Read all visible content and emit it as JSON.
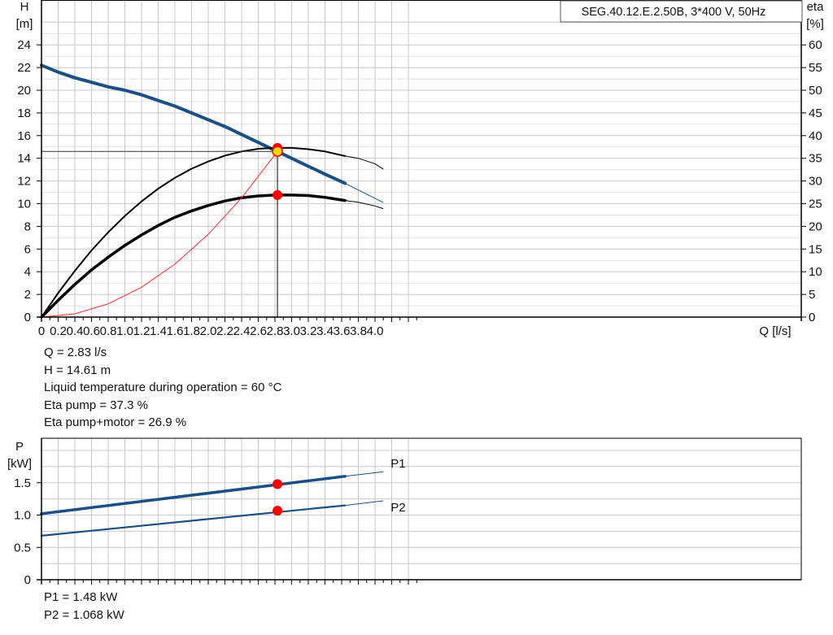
{
  "pump_label": "SEG.40.12.E.2.50B, 3*400 V, 50Hz",
  "head_chart": {
    "y_label_line1": "H",
    "y_label_line2": "[m]",
    "y2_label_line1": "eta",
    "y2_label_line2": "[%]",
    "x_label": "Q [l/s]"
  },
  "power_chart": {
    "y_label_line1": "P",
    "y_label_line2": "[kW]"
  },
  "operating_point_info": [
    "Q = 2.83 l/s",
    "H = 14.61 m",
    "Liquid temperature during operation = 60 °C",
    "Eta pump = 37.3 %",
    "Eta pump+motor = 26.9 %"
  ],
  "power_info": [
    "P1 = 1.48 kW",
    "P2 = 1.068 kW"
  ],
  "colors": {
    "pump_curve": "#1b4f85",
    "eta_curve": "#000000",
    "system_curve": "#ff2a2a",
    "marker": "#ff0000",
    "marker_center": "#ffd700",
    "grid": "#c8c8c8"
  },
  "chart_data": [
    {
      "type": "line",
      "title": "",
      "xlabel": "Q [l/s]",
      "ylabel": "H [m]",
      "y2label": "eta [%]",
      "xlim": [
        0,
        4.5
      ],
      "ylim": [
        0,
        26
      ],
      "y2lim": [
        0,
        65
      ],
      "x_ticks": [
        0,
        0.2,
        0.4,
        0.6,
        0.8,
        1.0,
        1.2,
        1.4,
        1.6,
        1.8,
        2.0,
        2.2,
        2.4,
        2.6,
        2.8,
        3.0,
        3.2,
        3.4,
        3.6,
        3.8,
        4.0
      ],
      "x_tick_labels": [
        "0",
        "0.2",
        "0.4",
        "0.6",
        "0.8",
        "1.0",
        "1.2",
        "1.4",
        "1.6",
        "1.8",
        "2.0",
        "2.2",
        "2.4",
        "2.6",
        "2.8",
        "3.0",
        "3.2",
        "3.4",
        "3.6",
        "3.8",
        "4.0"
      ],
      "y_ticks": [
        0,
        2,
        4,
        6,
        8,
        10,
        12,
        14,
        16,
        18,
        20,
        22,
        24
      ],
      "y2_ticks": [
        0,
        5,
        10,
        15,
        20,
        25,
        30,
        35,
        40,
        45,
        50,
        55,
        60
      ],
      "grid": true,
      "series": [
        {
          "name": "",
          "axis": "left",
          "role": "pump_curve",
          "x": [
            0,
            0.2,
            0.4,
            0.6,
            0.8,
            1.0,
            1.2,
            1.4,
            1.6,
            1.8,
            2.0,
            2.2,
            2.4,
            2.6,
            2.8,
            3.0,
            3.2,
            3.4,
            3.64
          ],
          "values": [
            22.2,
            21.6,
            21.1,
            20.7,
            20.3,
            20.0,
            19.6,
            19.1,
            18.6,
            18.0,
            17.4,
            16.8,
            16.1,
            15.4,
            14.7,
            14.0,
            13.3,
            12.6,
            11.8
          ],
          "extension_x": [
            3.64,
            4.1
          ],
          "extension_values": [
            11.8,
            10.1
          ]
        },
        {
          "name": "",
          "axis": "right",
          "role": "eta_pump",
          "x": [
            0,
            0.2,
            0.4,
            0.6,
            0.8,
            1.0,
            1.2,
            1.4,
            1.6,
            1.8,
            2.0,
            2.2,
            2.4,
            2.6,
            2.8,
            3.0,
            3.2,
            3.4,
            3.64
          ],
          "values": [
            0,
            5.3,
            10.2,
            14.7,
            18.7,
            22.3,
            25.5,
            28.3,
            30.7,
            32.7,
            34.3,
            35.6,
            36.5,
            37.1,
            37.3,
            37.3,
            37.0,
            36.5,
            35.5
          ],
          "extension_x": [
            3.64,
            3.8,
            4.0,
            4.1
          ],
          "extension_values": [
            35.5,
            35.0,
            33.8,
            32.6
          ]
        },
        {
          "name": "",
          "axis": "right",
          "role": "eta_pump_motor",
          "x": [
            0,
            0.2,
            0.4,
            0.6,
            0.8,
            1.0,
            1.2,
            1.4,
            1.6,
            1.8,
            2.0,
            2.2,
            2.4,
            2.6,
            2.8,
            3.0,
            3.2,
            3.4,
            3.64
          ],
          "values": [
            0,
            3.7,
            7.2,
            10.4,
            13.2,
            15.8,
            18.1,
            20.2,
            22.0,
            23.4,
            24.6,
            25.6,
            26.3,
            26.7,
            26.9,
            26.9,
            26.8,
            26.4,
            25.7
          ],
          "extension_x": [
            3.64,
            3.8,
            4.0,
            4.1
          ],
          "extension_values": [
            25.7,
            25.3,
            24.5,
            23.9
          ]
        },
        {
          "name": "",
          "axis": "left",
          "role": "system_curve",
          "x": [
            0,
            0.4,
            0.8,
            1.2,
            1.6,
            2.0,
            2.4,
            2.83
          ],
          "values": [
            0,
            0.29,
            1.17,
            2.63,
            4.67,
            7.3,
            10.51,
            14.61
          ]
        }
      ],
      "operating_point": {
        "q": 2.83,
        "h": 14.61,
        "eta_pump": 37.3,
        "eta_pump_motor": 26.9
      }
    },
    {
      "type": "line",
      "title": "",
      "xlabel": "",
      "ylabel": "P [kW]",
      "xlim": [
        0,
        4.5
      ],
      "ylim": [
        0,
        2.0
      ],
      "y_ticks": [
        0,
        0.5,
        1.0,
        1.5
      ],
      "y_tick_labels": [
        "0",
        "0.5",
        "1.0",
        "1.5"
      ],
      "grid": true,
      "series": [
        {
          "name": "P1",
          "x": [
            0,
            3.64
          ],
          "values": [
            1.02,
            1.6
          ],
          "extension_x": [
            3.64,
            4.1
          ],
          "extension_values": [
            1.6,
            1.67
          ]
        },
        {
          "name": "P2",
          "x": [
            0,
            3.64
          ],
          "values": [
            0.68,
            1.15
          ],
          "extension_x": [
            3.64,
            4.1
          ],
          "extension_values": [
            1.15,
            1.22
          ]
        }
      ],
      "operating_point": {
        "q": 2.83,
        "p1": 1.48,
        "p2": 1.068
      }
    }
  ]
}
